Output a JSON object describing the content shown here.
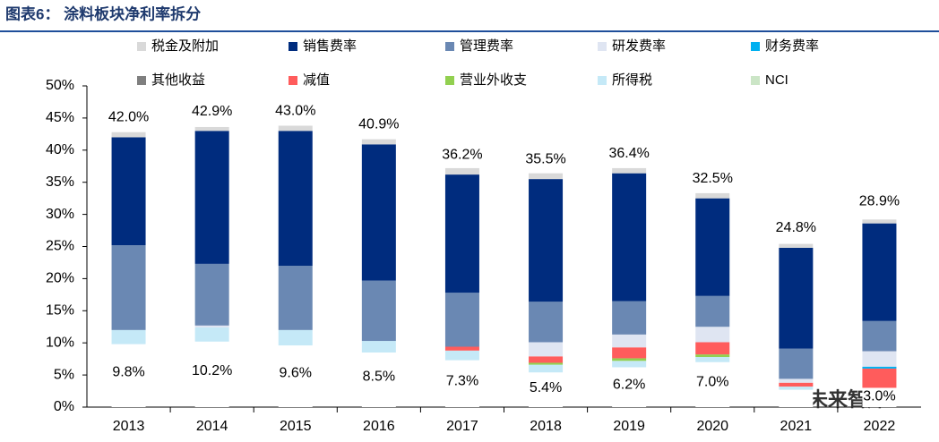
{
  "header": {
    "title": "图表6：  涂料板块净利率拆分",
    "watermark": "未来智库"
  },
  "chart_data": {
    "type": "stacked_bar",
    "categories": [
      "2013",
      "2014",
      "2015",
      "2016",
      "2017",
      "2018",
      "2019",
      "2020",
      "2021",
      "2022"
    ],
    "base": {
      "color": "#ffffff",
      "values": [
        9.8,
        10.2,
        9.6,
        8.5,
        7.3,
        5.4,
        6.2,
        7.0,
        2.7,
        3.0
      ],
      "value_labels": [
        "9.8%",
        "10.2%",
        "9.6%",
        "8.5%",
        "7.3%",
        "5.4%",
        "6.2%",
        "7.0%",
        null,
        "3.0%"
      ]
    },
    "series": [
      {
        "name": "税金及附加",
        "color": "#d9d9d9",
        "values": [
          0.8,
          0.6,
          0.8,
          0.8,
          1.0,
          0.9,
          0.8,
          0.8,
          0.6,
          0.6
        ]
      },
      {
        "name": "销售费率",
        "color": "#002c7e",
        "values": [
          16.8,
          20.7,
          21.0,
          21.2,
          18.4,
          19.1,
          19.9,
          15.2,
          15.7,
          15.2
        ]
      },
      {
        "name": "管理费率",
        "color": "#6a88b3",
        "values": [
          13.2,
          9.6,
          10.0,
          9.4,
          8.4,
          6.3,
          5.2,
          4.8,
          4.7,
          4.7
        ]
      },
      {
        "name": "研发费率",
        "color": "#dfe5f2",
        "values": [
          0,
          0.3,
          0,
          0,
          0,
          2.2,
          2.0,
          2.4,
          0.6,
          2.4
        ]
      },
      {
        "name": "财务费率",
        "color": "#00b0f0",
        "values": [
          0,
          0,
          0,
          0,
          0,
          0,
          0,
          0,
          0,
          0.3
        ]
      },
      {
        "name": "其他收益",
        "color": "#7f7f7f",
        "values": [
          0,
          0,
          0,
          0,
          0,
          0,
          0,
          0,
          0,
          0
        ]
      },
      {
        "name": "减值",
        "color": "#ff5c5c",
        "values": [
          0,
          0,
          0,
          0,
          0.6,
          1.0,
          1.7,
          1.9,
          0.6,
          3.0
        ]
      },
      {
        "name": "营业外收支",
        "color": "#92d050",
        "values": [
          0,
          0,
          0,
          0,
          0,
          0.3,
          0.4,
          0.4,
          0,
          0
        ]
      },
      {
        "name": "所得税",
        "color": "#c5e9f7",
        "values": [
          2.2,
          2.2,
          2.4,
          1.8,
          1.5,
          1.2,
          1.0,
          0.8,
          0.5,
          0
        ]
      },
      {
        "name": "NCI",
        "color": "#cbe5c6",
        "values": [
          0,
          0,
          0,
          0,
          0,
          0,
          0,
          0,
          0,
          0
        ]
      }
    ],
    "totals": {
      "values": [
        42.0,
        42.9,
        43.0,
        40.9,
        36.2,
        35.5,
        36.4,
        32.5,
        24.8,
        28.9
      ],
      "value_labels": [
        "42.0%",
        "42.9%",
        "43.0%",
        "40.9%",
        "36.2%",
        "35.5%",
        "36.4%",
        "32.5%",
        "24.8%",
        "28.9%"
      ]
    },
    "ylim": [
      0,
      50
    ],
    "yticks": [
      {
        "value": 0,
        "label": "0%"
      },
      {
        "value": 5,
        "label": "5%"
      },
      {
        "value": 10,
        "label": "10%"
      },
      {
        "value": 15,
        "label": "15%"
      },
      {
        "value": 20,
        "label": "20%"
      },
      {
        "value": 25,
        "label": "25%"
      },
      {
        "value": 30,
        "label": "30%"
      },
      {
        "value": 35,
        "label": "35%"
      },
      {
        "value": 40,
        "label": "40%"
      },
      {
        "value": 45,
        "label": "45%"
      },
      {
        "value": 50,
        "label": "50%"
      }
    ]
  }
}
